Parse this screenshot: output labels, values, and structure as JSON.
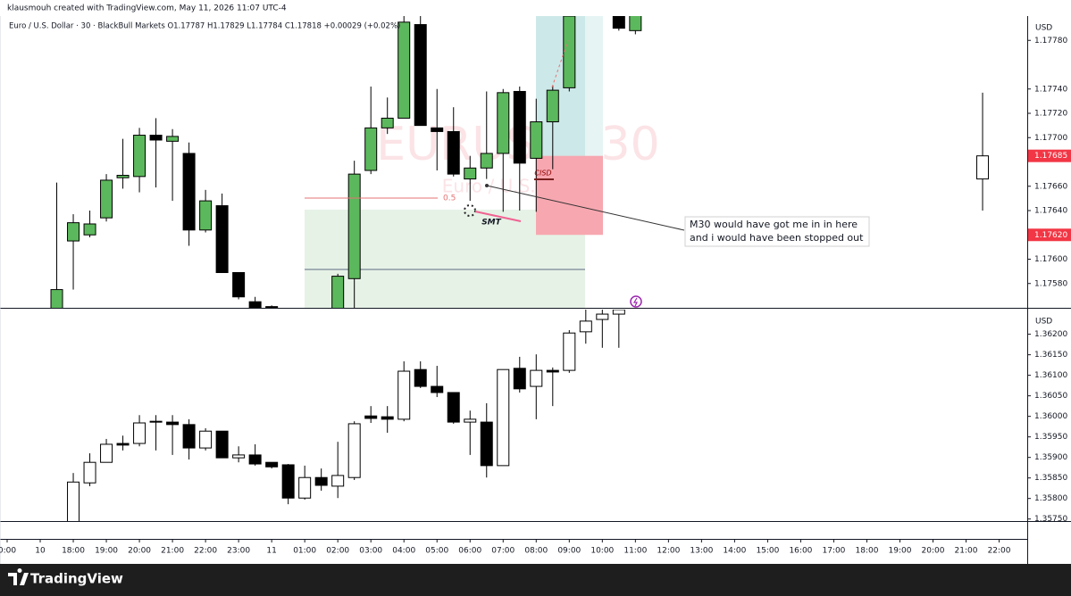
{
  "header": {
    "author_line": "klausmouh created with TradingView.com, May 11, 2026 11:07 UTC-4",
    "symbol_line": "Euro / U.S. Dollar · 30 · BlackBull Markets  O1.17787  H1.17829  L1.17784  C1.17818  +0.00029 (+0.02%)",
    "brand": "TradingView"
  },
  "chart_data": [
    {
      "type": "candlestick",
      "currency": "USD",
      "watermark_symbol": "EURUSD, 30",
      "watermark_name": "Euro / U.S. Dollar",
      "up_color": "#5cb85c",
      "down_color": "#000000",
      "xlim": [
        0,
        61.7
      ],
      "ylim": [
        1.1756,
        1.178
      ],
      "yticks": [
        {
          "value": 1.1778,
          "label": "1.17780"
        },
        {
          "value": 1.1774,
          "label": "1.17740"
        },
        {
          "value": 1.1772,
          "label": "1.17720"
        },
        {
          "value": 1.177,
          "label": "1.17700"
        },
        {
          "value": 1.1766,
          "label": "1.17660"
        },
        {
          "value": 1.1764,
          "label": "1.17640"
        },
        {
          "value": 1.176,
          "label": "1.17600"
        },
        {
          "value": 1.1758,
          "label": "1.17580"
        }
      ],
      "price_labels": [
        {
          "value": 1.17685,
          "label": "1.17685"
        },
        {
          "value": 1.1762,
          "label": "1.17620"
        }
      ],
      "candles": {
        "x": [
          3,
          4,
          5,
          6,
          7,
          8,
          9,
          10,
          11,
          12,
          13,
          14,
          15,
          16,
          20,
          21,
          22,
          23,
          24,
          25,
          26,
          27,
          28,
          29,
          30,
          31,
          32,
          33,
          34,
          37,
          38
        ],
        "open": [
          1.1755,
          1.17615,
          1.1762,
          1.17634,
          1.17667,
          1.17668,
          1.17702,
          1.17697,
          1.17687,
          1.17624,
          1.17644,
          1.17589,
          1.17565,
          1.17561,
          1.1755,
          1.17584,
          1.17673,
          1.17708,
          1.17716,
          1.17793,
          1.17708,
          1.17705,
          1.17666,
          1.17675,
          1.17687,
          1.17738,
          1.17683,
          1.17713,
          1.17741,
          1.17805,
          1.17788
        ],
        "high": [
          1.17663,
          1.17637,
          1.1764,
          1.1767,
          1.17699,
          1.17708,
          1.17716,
          1.17707,
          1.17696,
          1.17657,
          1.17654,
          1.17589,
          1.17569,
          1.17562,
          1.17588,
          1.17681,
          1.17742,
          1.17733,
          1.1781,
          1.1781,
          1.1774,
          1.17725,
          1.17685,
          1.17738,
          1.1774,
          1.17742,
          1.17732,
          1.17743,
          1.1781,
          1.1781,
          1.1781
        ],
        "low": [
          1.1754,
          1.17575,
          1.17618,
          1.17631,
          1.17658,
          1.17655,
          1.17659,
          1.17648,
          1.17611,
          1.17622,
          1.17589,
          1.17567,
          1.17555,
          1.17555,
          1.1754,
          1.1756,
          1.1767,
          1.17703,
          1.17716,
          1.1771,
          1.17673,
          1.17668,
          1.17648,
          1.17666,
          1.17639,
          1.1764,
          1.17639,
          1.17674,
          1.17738,
          1.17788,
          1.17785
        ],
        "close": [
          1.17575,
          1.1763,
          1.17629,
          1.17665,
          1.17669,
          1.17702,
          1.17698,
          1.17701,
          1.17624,
          1.17648,
          1.17589,
          1.17569,
          1.1756,
          1.17558,
          1.17586,
          1.1767,
          1.17708,
          1.17716,
          1.17795,
          1.1771,
          1.17705,
          1.1767,
          1.17675,
          1.17687,
          1.17737,
          1.17679,
          1.17713,
          1.17739,
          1.178,
          1.1779,
          1.17805
        ]
      },
      "projection_candle": {
        "x": 59,
        "open": 1.17666,
        "high": 1.17737,
        "low": 1.1764,
        "close": 1.17685
      },
      "annotations": {
        "fib_level": "0.5",
        "smt": "SMT",
        "cisd": "CISD",
        "note": [
          "M30 would have got me in in here",
          "and i would have been stopped out"
        ]
      }
    },
    {
      "type": "candlestick",
      "currency": "USD",
      "up_color": "#ffffff",
      "down_color": "#000000",
      "xlim": [
        0,
        61.7
      ],
      "ylim": [
        1.35745,
        1.3626
      ],
      "yticks": [
        {
          "value": 1.362,
          "label": "1.36200"
        },
        {
          "value": 1.3615,
          "label": "1.36150"
        },
        {
          "value": 1.361,
          "label": "1.36100"
        },
        {
          "value": 1.3605,
          "label": "1.36050"
        },
        {
          "value": 1.36,
          "label": "1.36000"
        },
        {
          "value": 1.3595,
          "label": "1.35950"
        },
        {
          "value": 1.359,
          "label": "1.35900"
        },
        {
          "value": 1.3585,
          "label": "1.35850"
        },
        {
          "value": 1.358,
          "label": "1.35800"
        },
        {
          "value": 1.3575,
          "label": "1.35750"
        }
      ],
      "xticks": [
        {
          "value": 0,
          "label": "0:00"
        },
        {
          "value": 2,
          "label": "10"
        },
        {
          "value": 4,
          "label": "18:00"
        },
        {
          "value": 6,
          "label": "19:00"
        },
        {
          "value": 8,
          "label": "20:00"
        },
        {
          "value": 10,
          "label": "21:00"
        },
        {
          "value": 12,
          "label": "22:00"
        },
        {
          "value": 14,
          "label": "23:00"
        },
        {
          "value": 16,
          "label": "11"
        },
        {
          "value": 18,
          "label": "01:00"
        },
        {
          "value": 20,
          "label": "02:00"
        },
        {
          "value": 22,
          "label": "03:00"
        },
        {
          "value": 24,
          "label": "04:00"
        },
        {
          "value": 26,
          "label": "05:00"
        },
        {
          "value": 28,
          "label": "06:00"
        },
        {
          "value": 30,
          "label": "07:00"
        },
        {
          "value": 32,
          "label": "08:00"
        },
        {
          "value": 34,
          "label": "09:00"
        },
        {
          "value": 36,
          "label": "10:00"
        },
        {
          "value": 38,
          "label": "11:00"
        },
        {
          "value": 40,
          "label": "12:00"
        },
        {
          "value": 42,
          "label": "13:00"
        },
        {
          "value": 44,
          "label": "14:00"
        },
        {
          "value": 46,
          "label": "15:00"
        },
        {
          "value": 48,
          "label": "16:00"
        },
        {
          "value": 50,
          "label": "17:00"
        },
        {
          "value": 52,
          "label": "18:00"
        },
        {
          "value": 54,
          "label": "19:00"
        },
        {
          "value": 56,
          "label": "20:00"
        },
        {
          "value": 58,
          "label": "21:00"
        },
        {
          "value": 60,
          "label": "22:00"
        }
      ],
      "candles": {
        "x": [
          4,
          5,
          6,
          7,
          8,
          9,
          10,
          11,
          12,
          13,
          14,
          15,
          16,
          17,
          18,
          19,
          20,
          21,
          22,
          23,
          24,
          25,
          26,
          27,
          28,
          29,
          30,
          31,
          32,
          33,
          34,
          35,
          36,
          37
        ],
        "open": [
          1.35732,
          1.35838,
          1.35888,
          1.35934,
          1.35934,
          1.35988,
          1.35986,
          1.3598,
          1.35923,
          1.35964,
          1.35899,
          1.35906,
          1.35888,
          1.35882,
          1.35801,
          1.35851,
          1.3583,
          1.35851,
          1.36001,
          1.35999,
          1.35993,
          1.36114,
          1.36073,
          1.36058,
          1.35986,
          1.35986,
          1.3588,
          1.36117,
          1.36073,
          1.36112,
          1.36112,
          1.36206,
          1.36236,
          1.36249
        ],
        "high": [
          1.35862,
          1.3591,
          1.35945,
          1.35953,
          1.36003,
          1.36003,
          1.36003,
          1.35993,
          1.35971,
          1.35964,
          1.35927,
          1.35932,
          1.35888,
          1.35884,
          1.3588,
          1.35873,
          1.35938,
          1.35988,
          1.36025,
          1.36025,
          1.36134,
          1.36134,
          1.36123,
          1.36058,
          1.36014,
          1.36032,
          1.36114,
          1.36145,
          1.36151,
          1.36119,
          1.3621,
          1.36264,
          1.36264,
          1.36264
        ],
        "low": [
          1.35732,
          1.3583,
          1.35888,
          1.35917,
          1.35927,
          1.35917,
          1.35906,
          1.35895,
          1.35917,
          1.35899,
          1.35888,
          1.3588,
          1.35873,
          1.35786,
          1.35797,
          1.35819,
          1.35801,
          1.35845,
          1.35984,
          1.3596,
          1.35988,
          1.36069,
          1.36047,
          1.35982,
          1.35906,
          1.35851,
          1.3588,
          1.36058,
          1.35993,
          1.36025,
          1.36106,
          1.36177,
          1.36167,
          1.36167
        ],
        "close": [
          1.3584,
          1.35888,
          1.35932,
          1.3593,
          1.35984,
          1.35986,
          1.3598,
          1.35923,
          1.35964,
          1.35899,
          1.35906,
          1.35884,
          1.35877,
          1.35801,
          1.35851,
          1.35832,
          1.35856,
          1.35982,
          1.35995,
          1.35993,
          1.3611,
          1.36073,
          1.36058,
          1.35986,
          1.35993,
          1.3588,
          1.36114,
          1.36067,
          1.36112,
          1.36108,
          1.36203,
          1.36232,
          1.36249,
          1.3626
        ]
      }
    }
  ]
}
